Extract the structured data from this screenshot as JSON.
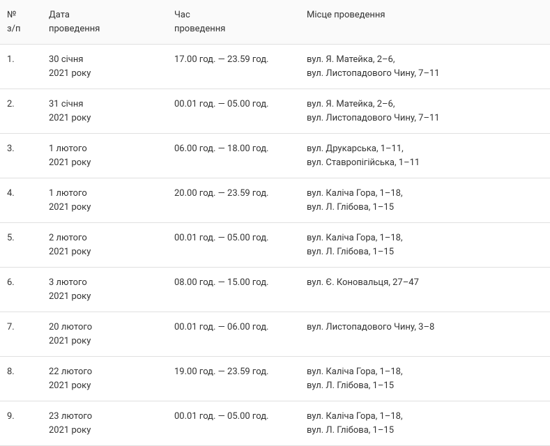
{
  "table": {
    "columns": [
      {
        "key": "num",
        "label_line1": "№",
        "label_line2": "з/п"
      },
      {
        "key": "date",
        "label_line1": "Дата",
        "label_line2": "проведення"
      },
      {
        "key": "time",
        "label_line1": "Час",
        "label_line2": "проведення"
      },
      {
        "key": "location",
        "label_line1": "Місце проведення",
        "label_line2": ""
      }
    ],
    "rows": [
      {
        "num": "1.",
        "date_line1": "30 січня",
        "date_line2": "2021 року",
        "time": "17.00 год. — 23.59 год.",
        "location_line1": "вул. Я. Матейка, 2–6,",
        "location_line2": "вул. Листопадового Чину, 7–11"
      },
      {
        "num": "2.",
        "date_line1": "31 січня",
        "date_line2": "2021 року",
        "time": "00.01 год. — 05.00 год.",
        "location_line1": "вул. Я. Матейка, 2–6,",
        "location_line2": "вул. Листопадового Чину, 7–11"
      },
      {
        "num": "3.",
        "date_line1": "1 лютого",
        "date_line2": "2021 року",
        "time": "06.00 год. — 18.00 год.",
        "location_line1": "вул. Друкарська, 1–11,",
        "location_line2": "вул. Ставропігійська, 1–11"
      },
      {
        "num": "4.",
        "date_line1": "1 лютого",
        "date_line2": "2021 року",
        "time": "20.00 год. — 23.59 год.",
        "location_line1": "вул. Каліча Гора, 1–18,",
        "location_line2": "вул. Л. Глібова, 1–15"
      },
      {
        "num": "5.",
        "date_line1": "2 лютого",
        "date_line2": "2021 року",
        "time": "00.01 год. — 05.00 год.",
        "location_line1": "вул. Каліча Гора, 1–18,",
        "location_line2": "вул. Л. Глібова, 1–15"
      },
      {
        "num": "6.",
        "date_line1": "3 лютого",
        "date_line2": "2021 року",
        "time": "08.00 год. — 15.00 год.",
        "location_line1": "вул. Є. Коновальця, 27–47",
        "location_line2": ""
      },
      {
        "num": "7.",
        "date_line1": "20 лютого",
        "date_line2": "2021 року",
        "time": "00.01 год. — 06.00 год.",
        "location_line1": "вул. Листопадового Чину, 3–8",
        "location_line2": ""
      },
      {
        "num": "8.",
        "date_line1": "22 лютого",
        "date_line2": "2021 року",
        "time": "19.00 год. — 23.59 год.",
        "location_line1": "вул. Каліча Гора, 1–18,",
        "location_line2": "вул. Л. Глібова, 1–15"
      },
      {
        "num": "9.",
        "date_line1": "23 лютого",
        "date_line2": "2021 року",
        "time": "00.01 год. — 05.00 год.",
        "location_line1": "вул. Каліча Гора, 1–18,",
        "location_line2": "вул. Л. Глібова, 1–15"
      }
    ]
  }
}
